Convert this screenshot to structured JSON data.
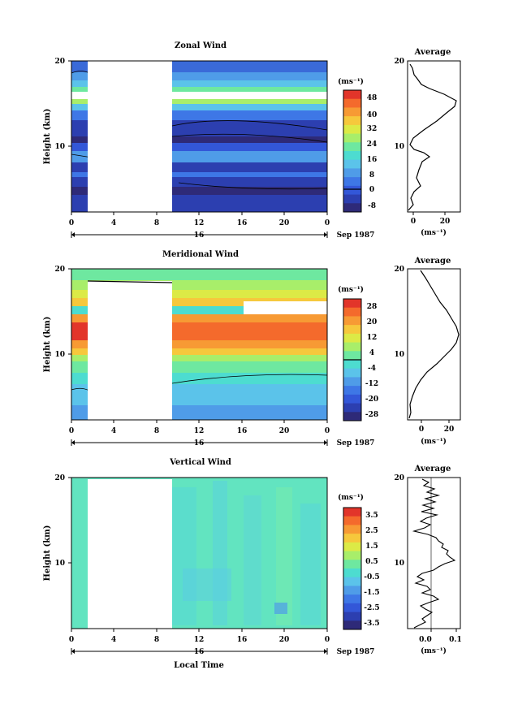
{
  "chart_data": [
    {
      "type": "heatmap",
      "title": "Zonal Wind",
      "ylabel": "Height (km)",
      "y_ticks": [
        "20",
        "10"
      ],
      "x_ticks": [
        "0",
        "4",
        "8",
        "12",
        "16",
        "20",
        "0"
      ],
      "date_label": "16",
      "month_label": "Sep 1987",
      "colorbar_unit": "(ms⁻¹)",
      "colorbar_ticks": [
        "48",
        "40",
        "32",
        "24",
        "16",
        "8",
        "0",
        "-8"
      ],
      "colors": [
        "#2e2a78",
        "#2c3fb0",
        "#3357d8",
        "#3e77e6",
        "#4f9ce8",
        "#5bc3ea",
        "#4ddcd0",
        "#6ee8a0",
        "#a8ee6a",
        "#dcea46",
        "#f6c83c",
        "#f79a34",
        "#f46a2c",
        "#e2352a"
      ],
      "profile_title": "Average",
      "profile_y_ticks": [
        "20",
        "10"
      ],
      "profile_x_ticks": [
        "0",
        "20"
      ],
      "profile_xlabel": "(ms⁻¹)"
    },
    {
      "type": "heatmap",
      "title": "Meridional Wind",
      "ylabel": "Height (km)",
      "y_ticks": [
        "20",
        "10"
      ],
      "x_ticks": [
        "0",
        "4",
        "8",
        "12",
        "16",
        "20",
        "0"
      ],
      "date_label": "16",
      "month_label": "Sep 1987",
      "colorbar_unit": "(ms⁻¹)",
      "colorbar_ticks": [
        "28",
        "20",
        "12",
        "4",
        "-4",
        "-12",
        "-20",
        "-28"
      ],
      "colors": [
        "#2e2a78",
        "#2c3fb0",
        "#3357d8",
        "#3e77e6",
        "#4f9ce8",
        "#5bc3ea",
        "#4ddcd0",
        "#6ee8a0",
        "#a8ee6a",
        "#dcea46",
        "#f6c83c",
        "#f79a34",
        "#f46a2c",
        "#e2352a"
      ],
      "profile_title": "Average",
      "profile_y_ticks": [
        "20",
        "10"
      ],
      "profile_x_ticks": [
        "0",
        "20"
      ],
      "profile_xlabel": "(ms⁻¹)"
    },
    {
      "type": "heatmap",
      "title": "Vertical Wind",
      "ylabel": "Height (km)",
      "xlabel": "Local Time",
      "y_ticks": [
        "20",
        "10"
      ],
      "x_ticks": [
        "0",
        "4",
        "8",
        "12",
        "16",
        "20",
        "0"
      ],
      "date_label": "16",
      "month_label": "Sep 1987",
      "colorbar_unit": "(ms⁻¹)",
      "colorbar_ticks": [
        "3.5",
        "2.5",
        "1.5",
        "0.5",
        "-0.5",
        "-1.5",
        "-2.5",
        "-3.5"
      ],
      "colors": [
        "#2e2a78",
        "#2c3fb0",
        "#3357d8",
        "#3e77e6",
        "#4f9ce8",
        "#5bc3ea",
        "#4ddcd0",
        "#6ee8a0",
        "#a8ee6a",
        "#dcea46",
        "#f6c83c",
        "#f79a34",
        "#f46a2c",
        "#e2352a"
      ],
      "profile_title": "Average",
      "profile_y_ticks": [
        "20",
        "10"
      ],
      "profile_x_ticks": [
        "0.0",
        "0.1"
      ],
      "profile_xlabel": "(ms⁻¹)"
    }
  ]
}
